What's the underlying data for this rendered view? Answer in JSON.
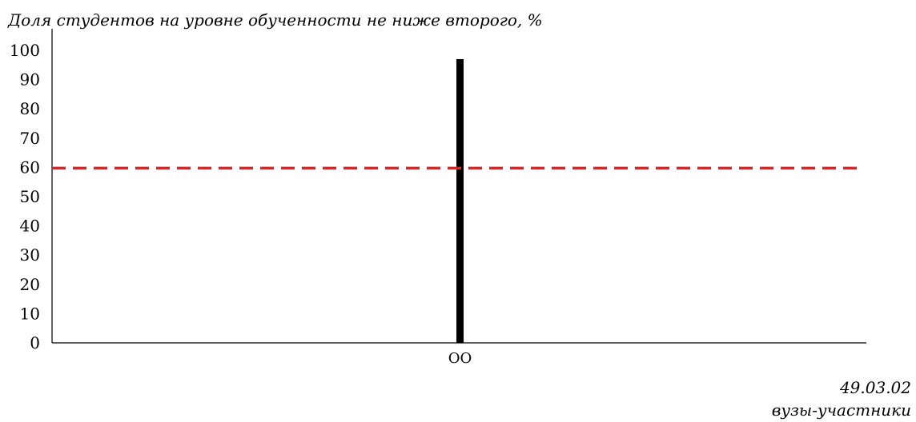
{
  "chart_data": {
    "type": "bar",
    "title": "Доля студентов на уровне обученности не ниже второго, %",
    "categories": [
      "ОО"
    ],
    "values": [
      97
    ],
    "ylim": [
      0,
      100
    ],
    "yticks": [
      0,
      10,
      20,
      30,
      40,
      50,
      60,
      70,
      80,
      90,
      100
    ],
    "threshold": 60,
    "grid": false,
    "legend": "none",
    "colors": {
      "bar": "#000000",
      "threshold": "#ee1c1c",
      "axis": "#000000"
    }
  },
  "footer": {
    "code": "49.03.02",
    "subtitle": "вузы-участники"
  }
}
